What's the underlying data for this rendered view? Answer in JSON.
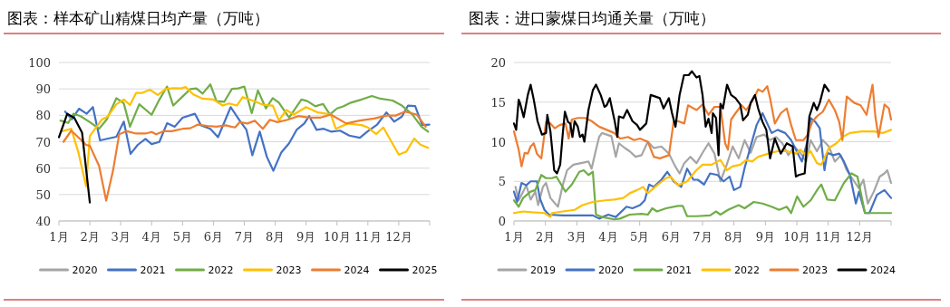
{
  "chart_data": [
    {
      "type": "line",
      "title": "图表：样本矿山精煤日均产量（万吨）",
      "xlim": [
        1,
        13
      ],
      "xticks": [
        {
          "value": 1,
          "label": "1月"
        },
        {
          "value": 2,
          "label": "2月"
        },
        {
          "value": 3,
          "label": "3月"
        },
        {
          "value": 4,
          "label": "4月"
        },
        {
          "value": 5,
          "label": "5月"
        },
        {
          "value": 6,
          "label": "6月"
        },
        {
          "value": 7,
          "label": "7月"
        },
        {
          "value": 8,
          "label": "8月"
        },
        {
          "value": 9,
          "label": "9月"
        },
        {
          "value": 10,
          "label": "10月"
        },
        {
          "value": 11,
          "label": "11月"
        },
        {
          "value": 12,
          "label": "12月"
        },
        {
          "value": 13,
          "label": null
        }
      ],
      "ylim": [
        40,
        100
      ],
      "yticks": [
        40,
        50,
        60,
        70,
        80,
        90,
        100
      ],
      "grid": "y",
      "legend": "bottom",
      "series": [
        {
          "name": "2020",
          "color": "#a5a5a5"
        },
        {
          "name": "2021",
          "color": "#4472c4",
          "x": [
            1.2,
            1.42,
            1.65,
            1.9,
            2.1,
            2.33,
            2.86,
            3.1,
            3.32,
            3.55,
            3.8,
            4.0,
            4.25,
            4.5,
            4.75,
            5.0,
            5.4,
            5.6,
            5.9,
            6.15,
            6.56,
            6.85,
            7.07,
            7.26,
            7.5,
            7.73,
            7.94,
            8.2,
            8.45,
            8.7,
            8.94,
            9.1,
            9.34,
            9.57,
            9.82,
            10.1,
            10.4,
            10.74,
            11.0,
            11.3,
            11.6,
            11.85,
            12.1,
            12.3,
            12.53,
            12.76,
            12.99
          ],
          "values": [
            81.4,
            78.5,
            82.5,
            80.6,
            83.1,
            70.5,
            71.9,
            77.6,
            65.4,
            68.8,
            71.1,
            69.1,
            69.9,
            77,
            75.7,
            79.1,
            80.6,
            76.2,
            74.9,
            71.7,
            83.1,
            78,
            74.5,
            64.9,
            73.8,
            64.3,
            59,
            66,
            69.4,
            74.6,
            76.9,
            79.7,
            74.5,
            74.9,
            73.8,
            74.2,
            72.3,
            71.5,
            74,
            76.5,
            81.1,
            77.6,
            79.5,
            83.7,
            83.5,
            76.3,
            76.5
          ]
        },
        {
          "name": "2022",
          "color": "#70ad47",
          "x": [
            1.05,
            1.3,
            1.47,
            1.7,
            2.0,
            2.3,
            2.55,
            2.86,
            3.1,
            3.3,
            3.6,
            4.0,
            4.25,
            4.5,
            4.7,
            5.0,
            5.25,
            5.45,
            5.65,
            5.9,
            6.1,
            6.35,
            6.6,
            6.8,
            7.0,
            7.24,
            7.44,
            7.7,
            7.92,
            8.12,
            8.45,
            8.85,
            9.04,
            9.3,
            9.55,
            9.77,
            10.0,
            10.2,
            10.45,
            10.8,
            11.13,
            11.4,
            11.8,
            12.1,
            12.44,
            12.73,
            12.95
          ],
          "values": [
            78,
            77.1,
            80.6,
            79.7,
            77.4,
            74.9,
            78.5,
            86.5,
            84.5,
            75.7,
            84.2,
            80.2,
            85.9,
            90.9,
            83.7,
            87.1,
            89.9,
            90.2,
            88.2,
            91.7,
            85.4,
            85.1,
            90,
            90.2,
            90.9,
            80.8,
            89.4,
            82.6,
            86.5,
            84.8,
            79.1,
            86,
            85.4,
            83.4,
            84.3,
            80.3,
            82.6,
            83.4,
            84.8,
            86,
            87.3,
            86.3,
            85.6,
            83.7,
            80.3,
            75.7,
            73.8
          ]
        },
        {
          "name": "2023",
          "color": "#ffc000",
          "x": [
            1.1,
            1.4,
            1.63,
            1.88,
            2.0,
            2.4,
            2.57,
            2.86,
            3.1,
            3.3,
            3.5,
            3.7,
            3.95,
            4.2,
            4.45,
            4.7,
            4.95,
            5.1,
            5.35,
            5.65,
            6.0,
            6.3,
            6.5,
            6.76,
            6.95,
            7.3,
            7.63,
            7.92,
            8.12,
            8.36,
            8.6,
            9.0,
            9.38,
            9.8,
            9.96,
            10.35,
            10.8,
            11.0,
            11.27,
            11.5,
            12.0,
            12.24,
            12.5,
            12.7,
            12.95
          ],
          "values": [
            74,
            74.9,
            66,
            53.1,
            72.2,
            78.5,
            79.4,
            84.2,
            86,
            83.9,
            88.5,
            88.5,
            89.7,
            87.7,
            89.9,
            90.3,
            90.2,
            90.7,
            87.9,
            86.3,
            86,
            83.7,
            84.5,
            83.7,
            86.9,
            85.4,
            83.9,
            83.7,
            78,
            82,
            80.3,
            83.1,
            81.1,
            80.3,
            74.9,
            76.9,
            76.3,
            75.4,
            72.9,
            75.4,
            65.1,
            66.2,
            71.2,
            68.9,
            67.7
          ]
        },
        {
          "name": "2024",
          "color": "#ed7d31",
          "x": [
            1.15,
            1.4,
            1.63,
            1.88,
            2.0,
            2.3,
            2.53,
            2.75,
            2.95,
            3.2,
            3.5,
            3.8,
            4.0,
            4.15,
            4.4,
            4.65,
            5.0,
            5.25,
            5.5,
            5.8,
            6.1,
            6.4,
            6.7,
            6.85,
            7.1,
            7.34,
            7.6,
            7.83,
            8.07,
            8.4,
            8.75,
            9.1,
            9.45,
            9.8,
            10.3,
            10.74,
            11.2,
            11.6,
            11.9,
            12.2,
            12.58,
            12.87
          ],
          "values": [
            70,
            74.2,
            71.6,
            68.8,
            68.5,
            60.8,
            47.7,
            59,
            72.8,
            74,
            73.1,
            73.1,
            73.7,
            72.8,
            74,
            74,
            74.9,
            75.1,
            76.5,
            76,
            75.7,
            76.2,
            75.4,
            77.4,
            76.9,
            78,
            74.9,
            78.3,
            77.4,
            78.3,
            79.7,
            79.1,
            79.1,
            80.3,
            76.9,
            78,
            78.8,
            79.9,
            79.9,
            81.4,
            80.3,
            75.7
          ]
        },
        {
          "name": "2025",
          "color": "#000000",
          "x": [
            1.0,
            1.27,
            1.5,
            1.75,
            2.0
          ],
          "values": [
            71.7,
            80.6,
            79,
            73.4,
            47
          ]
        }
      ]
    },
    {
      "type": "line",
      "title": "图表：进口蒙煤日均通关量（万吨）",
      "xlim": [
        1,
        13
      ],
      "xticks": [
        {
          "value": 1,
          "label": "1月"
        },
        {
          "value": 2,
          "label": "2月"
        },
        {
          "value": 3,
          "label": "3月"
        },
        {
          "value": 4,
          "label": "4月"
        },
        {
          "value": 5,
          "label": "5月"
        },
        {
          "value": 6,
          "label": "6月"
        },
        {
          "value": 7,
          "label": "7月"
        },
        {
          "value": 8,
          "label": "8月"
        },
        {
          "value": 9,
          "label": "9月"
        },
        {
          "value": 10,
          "label": "10月"
        },
        {
          "value": 11,
          "label": "11月"
        },
        {
          "value": 12,
          "label": "12月"
        },
        {
          "value": 13,
          "label": null
        }
      ],
      "ylim": [
        0,
        20
      ],
      "yticks": [
        0,
        5,
        10,
        15,
        20
      ],
      "grid": "y",
      "legend": "bottom",
      "series": [
        {
          "name": "2019",
          "color": "#a5a5a5",
          "x": [
            1.05,
            1.15,
            1.29,
            1.39,
            1.53,
            1.68,
            1.77,
            1.92,
            2.02,
            2.16,
            2.31,
            2.4,
            2.55,
            2.69,
            2.89,
            3.13,
            3.37,
            3.47,
            3.61,
            3.71,
            3.8,
            3.95,
            4.1,
            4.24,
            4.34,
            4.53,
            4.68,
            4.87,
            5.06,
            5.26,
            5.45,
            5.69,
            5.93,
            6.13,
            6.27,
            6.42,
            6.61,
            6.81,
            7.0,
            7.19,
            7.38,
            7.57,
            7.77,
            7.96,
            8.15,
            8.34,
            8.53,
            8.72,
            8.96,
            9.15,
            9.34,
            9.54,
            9.73,
            9.92,
            10.11,
            10.3,
            10.44,
            10.64,
            10.83,
            11.02,
            11.21,
            11.4,
            11.59,
            11.79,
            11.98,
            12.12,
            12.26,
            12.45,
            12.64,
            12.79,
            12.88,
            13.0
          ],
          "values": [
            4.3,
            2.6,
            3.7,
            4.5,
            2.7,
            3.7,
            2.0,
            4.3,
            4.8,
            2.9,
            2.2,
            1.8,
            4.5,
            6.4,
            7.1,
            7.3,
            7.5,
            6.6,
            9.0,
            10.6,
            11.1,
            10.9,
            10.7,
            8.1,
            9.8,
            9.2,
            8.8,
            8.1,
            8.3,
            10.0,
            9.2,
            9.4,
            8.5,
            6.9,
            6.0,
            7.3,
            8.1,
            7.3,
            8.6,
            9.8,
            8.5,
            5.0,
            7.1,
            9.4,
            7.9,
            10.2,
            8.6,
            10.6,
            10.9,
            10.2,
            10.6,
            9.8,
            8.3,
            9.4,
            8.6,
            7.5,
            10.2,
            8.8,
            10.2,
            9.4,
            7.5,
            8.3,
            6.4,
            5.2,
            4.1,
            5.2,
            2.2,
            3.7,
            5.6,
            6.0,
            6.4,
            4.8
          ]
        },
        {
          "name": "2020",
          "color": "#4472c4",
          "x": [
            1.0,
            1.1,
            1.24,
            1.39,
            1.53,
            1.73,
            1.82,
            1.97,
            2.11,
            2.55,
            3.51,
            3.71,
            4.0,
            4.24,
            4.58,
            4.77,
            5.01,
            5.16,
            5.3,
            5.45,
            5.69,
            5.88,
            6.08,
            6.32,
            6.51,
            6.71,
            6.85,
            7.05,
            7.24,
            7.48,
            7.67,
            7.86,
            8.0,
            8.2,
            8.34,
            8.53,
            8.72,
            8.91,
            9.06,
            9.2,
            9.39,
            9.63,
            9.82,
            9.97,
            10.16,
            10.35,
            10.44,
            10.59,
            10.73,
            10.88,
            10.97,
            11.16,
            11.35,
            11.5,
            11.69,
            11.88,
            11.98,
            12.17,
            12.31,
            12.55,
            12.79,
            13.0
          ],
          "values": [
            3.7,
            2.4,
            4.8,
            4.5,
            5.0,
            5.0,
            2.9,
            1.4,
            0.8,
            0.7,
            0.7,
            0.3,
            0.8,
            0.5,
            1.8,
            1.6,
            2.0,
            2.6,
            4.6,
            4.3,
            5.2,
            6.2,
            5.0,
            4.3,
            6.6,
            5.2,
            5.2,
            4.6,
            6.0,
            5.8,
            5.0,
            5.6,
            3.9,
            4.3,
            6.7,
            9.4,
            12.1,
            13.6,
            12.3,
            11.1,
            11.5,
            11.1,
            10.2,
            9.0,
            7.5,
            10.2,
            13.0,
            12.5,
            11.7,
            6.4,
            8.6,
            8.3,
            8.5,
            7.5,
            5.8,
            2.2,
            3.7,
            1.0,
            1.0,
            3.3,
            3.9,
            2.9
          ]
        },
        {
          "name": "2021",
          "color": "#70ad47",
          "x": [
            1.0,
            1.15,
            1.29,
            1.53,
            1.68,
            1.87,
            2.02,
            2.21,
            2.35,
            2.5,
            2.64,
            2.84,
            3.08,
            3.22,
            3.37,
            3.51,
            3.61,
            3.8,
            4.19,
            4.38,
            4.68,
            5.06,
            5.26,
            5.4,
            5.55,
            5.84,
            6.22,
            6.37,
            6.51,
            6.8,
            7.24,
            7.43,
            7.57,
            7.81,
            8.15,
            8.34,
            8.63,
            8.91,
            9.2,
            9.44,
            9.68,
            9.82,
            10.01,
            10.21,
            10.44,
            10.68,
            10.78,
            10.97,
            11.21,
            11.5,
            11.74,
            11.93,
            12.17,
            12.55,
            13.0
          ],
          "values": [
            2.6,
            1.8,
            2.9,
            3.7,
            3.9,
            5.8,
            5.4,
            5.4,
            5.6,
            4.6,
            3.7,
            4.6,
            6.2,
            6.4,
            5.8,
            6.2,
            0.8,
            0.5,
            0.2,
            0.3,
            0.8,
            0.9,
            0.8,
            1.6,
            1.2,
            1.6,
            1.9,
            1.9,
            0.6,
            0.6,
            0.7,
            1.2,
            0.8,
            1.4,
            2.0,
            1.6,
            2.4,
            2.2,
            1.8,
            1.4,
            1.8,
            1.0,
            3.1,
            1.8,
            2.6,
            4.1,
            4.6,
            2.7,
            2.6,
            4.8,
            6.0,
            5.6,
            1.0,
            1.0,
            1.0
          ]
        },
        {
          "name": "2022",
          "color": "#ffc000",
          "x": [
            1.0,
            1.29,
            1.58,
            1.97,
            2.16,
            2.21,
            2.55,
            2.93,
            3.18,
            3.51,
            3.9,
            4.19,
            4.48,
            4.68,
            4.92,
            5.11,
            5.26,
            5.55,
            5.84,
            5.98,
            6.22,
            6.51,
            6.8,
            7.0,
            7.29,
            7.57,
            7.77,
            7.96,
            8.2,
            8.39,
            8.58,
            8.77,
            9.1,
            9.39,
            9.68,
            9.97,
            10.11,
            10.3,
            10.44,
            10.64,
            10.78,
            11.02,
            11.26,
            11.45,
            11.69,
            12.07,
            12.45,
            12.74,
            13.0
          ],
          "values": [
            1.0,
            1.2,
            1.1,
            1.0,
            0.5,
            1.0,
            1.2,
            1.4,
            2.0,
            2.4,
            2.6,
            2.7,
            2.9,
            3.5,
            3.9,
            4.3,
            3.5,
            4.5,
            5.4,
            5.6,
            4.5,
            5.0,
            6.4,
            7.1,
            7.1,
            7.7,
            6.4,
            6.9,
            7.1,
            7.7,
            7.5,
            8.1,
            8.5,
            8.8,
            8.8,
            8.5,
            9.0,
            8.3,
            8.8,
            7.3,
            7.1,
            9.2,
            9.8,
            10.6,
            11.1,
            11.3,
            11.3,
            11.1,
            11.5
          ]
        },
        {
          "name": "2023",
          "color": "#ed7d31",
          "x": [
            1.0,
            1.15,
            1.24,
            1.34,
            1.44,
            1.53,
            1.63,
            1.73,
            1.87,
            2.02,
            2.16,
            2.3,
            2.45,
            2.64,
            2.74,
            2.84,
            3.03,
            3.27,
            3.47,
            3.71,
            3.95,
            4.19,
            4.38,
            4.63,
            4.82,
            5.01,
            5.26,
            5.45,
            5.64,
            5.93,
            6.08,
            6.22,
            6.42,
            6.54,
            6.81,
            7.0,
            7.19,
            7.38,
            7.57,
            7.72,
            7.81,
            7.91,
            8.05,
            8.24,
            8.39,
            8.58,
            8.77,
            8.91,
            9.06,
            9.15,
            9.3,
            9.49,
            9.68,
            9.82,
            9.97,
            10.21,
            10.35,
            10.49,
            10.64,
            10.83,
            11.02,
            11.21,
            11.35,
            11.45,
            11.59,
            11.83,
            12.03,
            12.22,
            12.41,
            12.5,
            12.6,
            12.79,
            12.93,
            13.0
          ],
          "values": [
            11.3,
            9.0,
            6.9,
            8.6,
            8.5,
            9.4,
            9.8,
            8.5,
            7.9,
            12.5,
            12.3,
            11.7,
            12.1,
            12.3,
            10.4,
            12.8,
            13.0,
            13.0,
            12.6,
            11.9,
            11.5,
            11.1,
            10.4,
            10.6,
            10.2,
            10.4,
            10.0,
            8.1,
            7.9,
            8.3,
            12.5,
            12.6,
            12.3,
            14.6,
            14.0,
            14.7,
            13.4,
            14.4,
            14.4,
            9.8,
            9.0,
            12.8,
            13.6,
            14.6,
            14.0,
            15.1,
            16.6,
            16.3,
            17.0,
            15.5,
            12.3,
            13.6,
            14.2,
            12.1,
            10.2,
            10.2,
            10.9,
            12.5,
            13.2,
            13.8,
            15.3,
            14.0,
            12.5,
            10.2,
            15.7,
            14.9,
            14.6,
            13.4,
            17.2,
            13.2,
            10.6,
            14.7,
            14.2,
            12.8
          ]
        },
        {
          "name": "2024",
          "color": "#000000",
          "x": [
            1.0,
            1.07,
            1.15,
            1.19,
            1.31,
            1.44,
            1.53,
            1.63,
            1.75,
            1.89,
            2.02,
            2.06,
            2.16,
            2.28,
            2.37,
            2.47,
            2.55,
            2.62,
            2.72,
            2.79,
            2.86,
            2.93,
            3.03,
            3.1,
            3.18,
            3.24,
            3.37,
            3.51,
            3.61,
            3.76,
            3.88,
            3.95,
            4.05,
            4.14,
            4.21,
            4.29,
            4.34,
            4.48,
            4.6,
            4.77,
            4.92,
            5.01,
            5.21,
            5.35,
            5.5,
            5.64,
            5.76,
            5.93,
            6.03,
            6.14,
            6.27,
            6.41,
            6.56,
            6.66,
            6.81,
            6.9,
            7.0,
            7.1,
            7.19,
            7.29,
            7.33,
            7.43,
            7.51,
            7.57,
            7.65,
            7.78,
            7.91,
            8.05,
            8.2,
            8.29,
            8.44,
            8.53,
            8.67,
            8.77,
            8.91,
            9.03,
            9.15,
            9.3,
            9.49,
            9.68,
            9.87,
            9.97,
            10.06,
            10.25,
            10.4,
            10.54,
            10.64,
            10.73,
            10.88,
            11.02
          ],
          "values": [
            12.3,
            11.5,
            15.3,
            14.9,
            13.1,
            15.9,
            17.2,
            15.3,
            12.6,
            10.9,
            11.1,
            13.4,
            11.3,
            6.4,
            6.0,
            7.1,
            10.9,
            13.8,
            12.5,
            12.3,
            10.6,
            12.6,
            11.9,
            10.6,
            10.9,
            10.0,
            14.0,
            16.5,
            17.2,
            15.9,
            14.4,
            14.6,
            15.5,
            13.8,
            12.5,
            10.6,
            13.2,
            13.0,
            14.0,
            12.6,
            12.1,
            11.5,
            12.3,
            15.9,
            15.7,
            15.5,
            14.2,
            15.5,
            13.6,
            11.9,
            15.9,
            18.4,
            18.4,
            18.9,
            18.1,
            18.3,
            15.9,
            11.9,
            12.9,
            11.1,
            13.6,
            13.0,
            8.3,
            14.8,
            14.2,
            17.2,
            15.9,
            15.5,
            14.7,
            12.7,
            13.4,
            14.9,
            15.9,
            14.2,
            12.5,
            11.5,
            7.9,
            10.4,
            8.5,
            9.8,
            9.4,
            5.6,
            5.8,
            6.0,
            13.2,
            14.9,
            14.0,
            14.9,
            17.2,
            16.4
          ]
        }
      ]
    }
  ]
}
